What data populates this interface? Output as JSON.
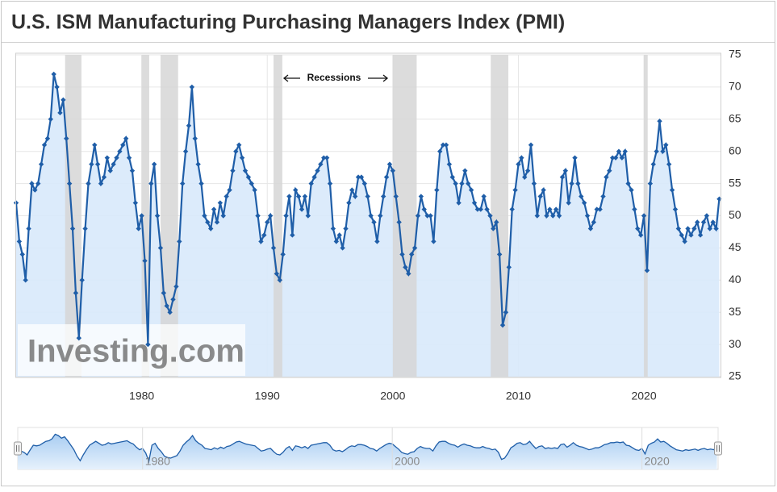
{
  "chart_data": {
    "type": "line",
    "title": "U.S. ISM Manufacturing Purchasing Managers Index (PMI)",
    "annotation": "Recessions",
    "watermark": "Investing.com",
    "x": [
      1970,
      1970.25,
      1970.5,
      1970.75,
      1971,
      1971.25,
      1971.5,
      1971.75,
      1972,
      1972.25,
      1972.5,
      1972.75,
      1973,
      1973.25,
      1973.5,
      1973.75,
      1974,
      1974.25,
      1974.5,
      1974.75,
      1975,
      1975.25,
      1975.5,
      1975.75,
      1976,
      1976.25,
      1976.5,
      1976.75,
      1977,
      1977.25,
      1977.5,
      1977.75,
      1978,
      1978.25,
      1978.5,
      1978.75,
      1979,
      1979.25,
      1979.5,
      1979.75,
      1980,
      1980.25,
      1980.5,
      1980.75,
      1981,
      1981.25,
      1981.5,
      1981.75,
      1982,
      1982.25,
      1982.5,
      1982.75,
      1983,
      1983.25,
      1983.5,
      1983.75,
      1984,
      1984.25,
      1984.5,
      1984.75,
      1985,
      1985.25,
      1985.5,
      1985.75,
      1986,
      1986.25,
      1986.5,
      1986.75,
      1987,
      1987.25,
      1987.5,
      1987.75,
      1988,
      1988.25,
      1988.5,
      1988.75,
      1989,
      1989.25,
      1989.5,
      1989.75,
      1990,
      1990.25,
      1990.5,
      1990.75,
      1991,
      1991.25,
      1991.5,
      1991.75,
      1992,
      1992.25,
      1992.5,
      1992.75,
      1993,
      1993.25,
      1993.5,
      1993.75,
      1994,
      1994.25,
      1994.5,
      1994.75,
      1995,
      1995.25,
      1995.5,
      1995.75,
      1996,
      1996.25,
      1996.5,
      1996.75,
      1997,
      1997.25,
      1997.5,
      1997.75,
      1998,
      1998.25,
      1998.5,
      1998.75,
      1999,
      1999.25,
      1999.5,
      1999.75,
      2000,
      2000.25,
      2000.5,
      2000.75,
      2001,
      2001.25,
      2001.5,
      2001.75,
      2002,
      2002.25,
      2002.5,
      2002.75,
      2003,
      2003.25,
      2003.5,
      2003.75,
      2004,
      2004.25,
      2004.5,
      2004.75,
      2005,
      2005.25,
      2005.5,
      2005.75,
      2006,
      2006.25,
      2006.5,
      2006.75,
      2007,
      2007.25,
      2007.5,
      2007.75,
      2008,
      2008.25,
      2008.5,
      2008.75,
      2009,
      2009.25,
      2009.5,
      2009.75,
      2010,
      2010.25,
      2010.5,
      2010.75,
      2011,
      2011.25,
      2011.5,
      2011.75,
      2012,
      2012.25,
      2012.5,
      2012.75,
      2013,
      2013.25,
      2013.5,
      2013.75,
      2014,
      2014.25,
      2014.5,
      2014.75,
      2015,
      2015.25,
      2015.5,
      2015.75,
      2016,
      2016.25,
      2016.5,
      2016.75,
      2017,
      2017.25,
      2017.5,
      2017.75,
      2018,
      2018.25,
      2018.5,
      2018.75,
      2019,
      2019.25,
      2019.5,
      2019.75,
      2020,
      2020.25,
      2020.5,
      2020.75,
      2021,
      2021.25,
      2021.5,
      2021.75,
      2022,
      2022.25,
      2022.5,
      2022.75,
      2023,
      2023.25,
      2023.5,
      2023.75,
      2024,
      2024.25,
      2024.5,
      2024.75,
      2025,
      2025.25,
      2025.5,
      2025.75,
      2026
    ],
    "series": [
      {
        "name": "PMI",
        "color": "#1f5ea8",
        "values": [
          52,
          46,
          44,
          40,
          48,
          55,
          54,
          55,
          58,
          61,
          62,
          65,
          72,
          70,
          66,
          68,
          62,
          55,
          48,
          38,
          31,
          40,
          48,
          55,
          58,
          61,
          58,
          55,
          56,
          59,
          57,
          58,
          59,
          60,
          61,
          62,
          59,
          57,
          52,
          48,
          50,
          43,
          30,
          55,
          58,
          50,
          45,
          38,
          36,
          35,
          37,
          39,
          46,
          55,
          60,
          64,
          70,
          62,
          58,
          55,
          50,
          49,
          48,
          51,
          49,
          52,
          50,
          53,
          54,
          57,
          60,
          61,
          59,
          57,
          56,
          55,
          54,
          50,
          46,
          47,
          49,
          50,
          45,
          41,
          40,
          44,
          50,
          53,
          47,
          54,
          53,
          51,
          53,
          50,
          55,
          56,
          57,
          58,
          59,
          59,
          55,
          48,
          46,
          47,
          45,
          48,
          52,
          54,
          53,
          56,
          56,
          55,
          53,
          50,
          49,
          46,
          50,
          53,
          56,
          58,
          57,
          53,
          49,
          44,
          42,
          41,
          44,
          45,
          50,
          53,
          51,
          50,
          50,
          46,
          54,
          60,
          61,
          61,
          58,
          56,
          55,
          52,
          55,
          57,
          55,
          54,
          52,
          51,
          51,
          53,
          51,
          50,
          48,
          49,
          44,
          33,
          35,
          42,
          51,
          54,
          58,
          59,
          56,
          57,
          61,
          55,
          50,
          53,
          54,
          50,
          51,
          50,
          51,
          50,
          56,
          57,
          52,
          55,
          59,
          55,
          53,
          52,
          50,
          48,
          49,
          51,
          51,
          53,
          56,
          57,
          59,
          59,
          60,
          59,
          60,
          55,
          54,
          51,
          48,
          47,
          50,
          41.5,
          55,
          58,
          60,
          64.7,
          60,
          61,
          58,
          54,
          51,
          48,
          47,
          46,
          48,
          47,
          48,
          49,
          47,
          49,
          50,
          48,
          49,
          48,
          52.6
        ]
      }
    ],
    "fill_color": "#d8e9fb",
    "recession_color": "#d6d6d6",
    "recessions": [
      [
        1973.9,
        1975.2
      ],
      [
        1980.0,
        1980.6
      ],
      [
        1981.5,
        1982.9
      ],
      [
        1990.5,
        1991.2
      ],
      [
        2000.0,
        2001.9
      ],
      [
        2007.8,
        2009.2
      ],
      [
        2020.0,
        2020.3
      ]
    ],
    "xlim": [
      1970,
      2026.1
    ],
    "xticks": [
      1980,
      1990,
      2000,
      2010,
      2020
    ],
    "ylim": [
      25,
      75
    ],
    "yticks": [
      25,
      30,
      35,
      40,
      45,
      50,
      55,
      60,
      65,
      70,
      75
    ],
    "grid": true,
    "navigator_xticks": [
      1980,
      2000,
      2020
    ]
  }
}
